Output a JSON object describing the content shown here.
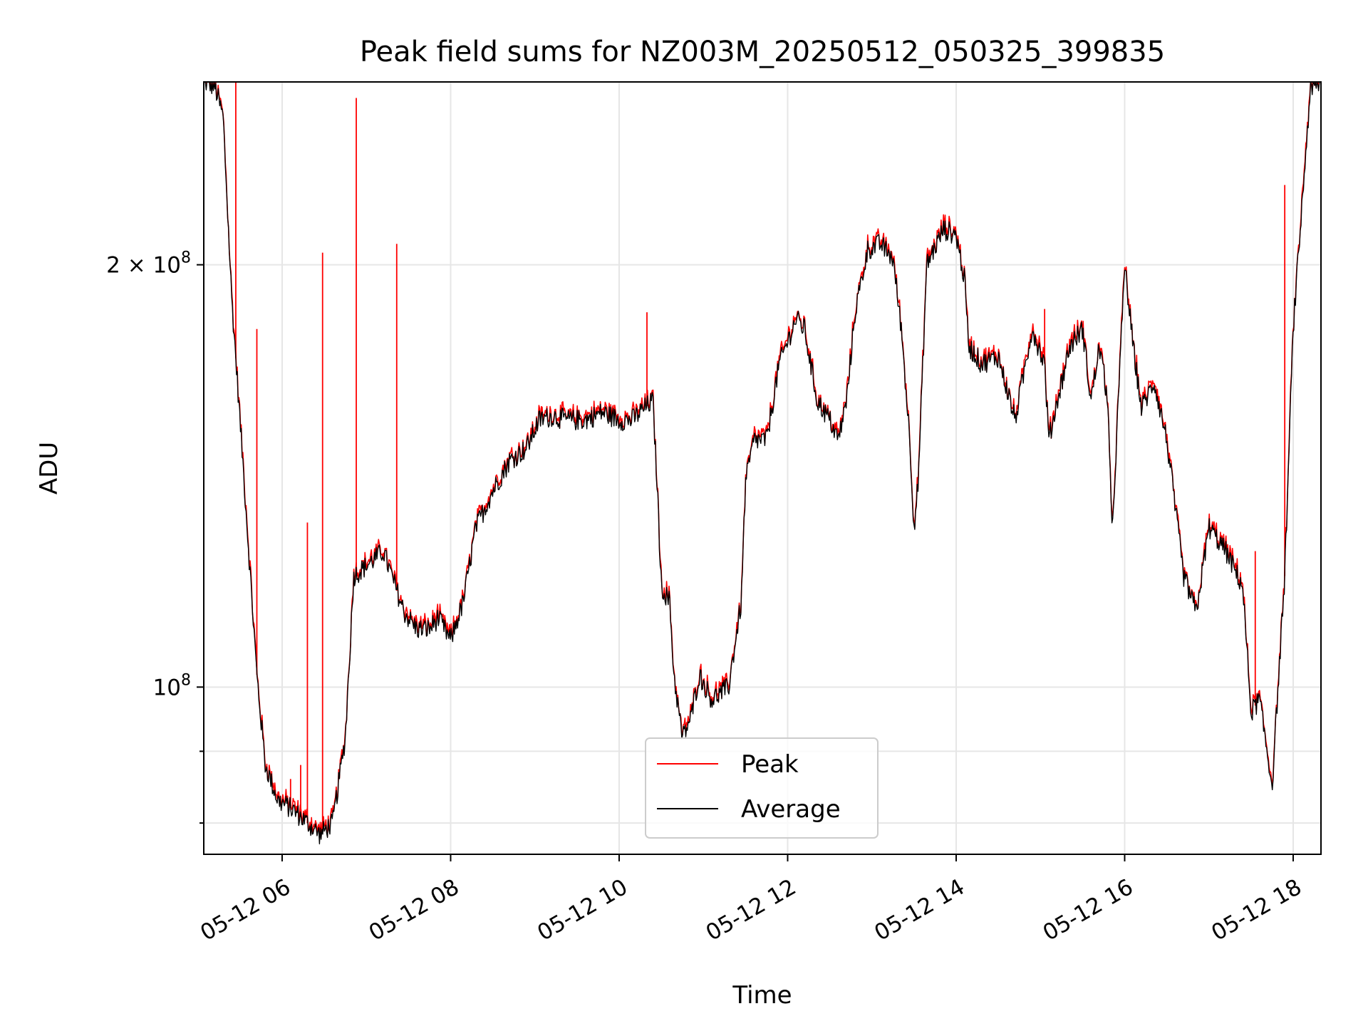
{
  "chart_data": {
    "type": "line",
    "title": "Peak field sums for NZ003M_20250512_050325_399835",
    "xlabel": "Time",
    "ylabel": "ADU",
    "x_unit": "hours",
    "xlim": [
      5.07,
      18.33
    ],
    "ylim": [
      76000000,
      270000000
    ],
    "y_scale": "log",
    "x_ticks": [
      {
        "value": 6,
        "label": "05-12 06"
      },
      {
        "value": 8,
        "label": "05-12 08"
      },
      {
        "value": 10,
        "label": "05-12 10"
      },
      {
        "value": 12,
        "label": "05-12 12"
      },
      {
        "value": 14,
        "label": "05-12 14"
      },
      {
        "value": 16,
        "label": "05-12 16"
      },
      {
        "value": 18,
        "label": "05-12 18"
      }
    ],
    "y_major_ticks": [
      {
        "value": 100000000,
        "base": "10",
        "exp": "8"
      },
      {
        "value": 200000000,
        "base": "2 × 10",
        "exp": "8"
      }
    ],
    "y_minor_ticks": [
      80000000,
      90000000
    ],
    "grid": true,
    "legend_position": "lower center",
    "colors": {
      "peak": "#ff0000",
      "average": "#000000"
    },
    "average_anchors": [
      [
        5.07,
        270000000
      ],
      [
        5.2,
        268000000
      ],
      [
        5.3,
        255000000
      ],
      [
        5.4,
        190000000
      ],
      [
        5.55,
        140000000
      ],
      [
        5.7,
        102000000
      ],
      [
        5.8,
        88000000
      ],
      [
        5.95,
        83000000
      ],
      [
        6.1,
        82000000
      ],
      [
        6.3,
        80000000
      ],
      [
        6.45,
        78500000
      ],
      [
        6.6,
        80000000
      ],
      [
        6.75,
        92000000
      ],
      [
        6.85,
        120000000
      ],
      [
        7.0,
        122000000
      ],
      [
        7.2,
        125000000
      ],
      [
        7.3,
        120000000
      ],
      [
        7.45,
        113000000
      ],
      [
        7.6,
        110000000
      ],
      [
        7.75,
        110000000
      ],
      [
        7.85,
        112000000
      ],
      [
        8.0,
        108000000
      ],
      [
        8.15,
        115000000
      ],
      [
        8.3,
        130000000
      ],
      [
        8.5,
        138000000
      ],
      [
        8.7,
        145000000
      ],
      [
        8.9,
        148000000
      ],
      [
        9.05,
        155000000
      ],
      [
        9.2,
        156000000
      ],
      [
        9.4,
        155000000
      ],
      [
        9.6,
        155000000
      ],
      [
        9.8,
        157000000
      ],
      [
        10.0,
        155000000
      ],
      [
        10.15,
        155000000
      ],
      [
        10.3,
        158000000
      ],
      [
        10.4,
        160000000
      ],
      [
        10.45,
        140000000
      ],
      [
        10.5,
        118000000
      ],
      [
        10.6,
        115000000
      ],
      [
        10.65,
        102000000
      ],
      [
        10.75,
        92000000
      ],
      [
        10.85,
        95000000
      ],
      [
        10.95,
        102000000
      ],
      [
        11.1,
        98000000
      ],
      [
        11.3,
        100000000
      ],
      [
        11.45,
        115000000
      ],
      [
        11.5,
        140000000
      ],
      [
        11.6,
        150000000
      ],
      [
        11.75,
        150000000
      ],
      [
        11.9,
        170000000
      ],
      [
        12.1,
        183000000
      ],
      [
        12.2,
        180000000
      ],
      [
        12.35,
        160000000
      ],
      [
        12.5,
        155000000
      ],
      [
        12.6,
        150000000
      ],
      [
        12.7,
        160000000
      ],
      [
        12.8,
        185000000
      ],
      [
        12.95,
        205000000
      ],
      [
        13.1,
        207000000
      ],
      [
        13.25,
        202000000
      ],
      [
        13.35,
        180000000
      ],
      [
        13.45,
        150000000
      ],
      [
        13.5,
        130000000
      ],
      [
        13.55,
        140000000
      ],
      [
        13.65,
        200000000
      ],
      [
        13.85,
        212000000
      ],
      [
        14.0,
        210000000
      ],
      [
        14.1,
        195000000
      ],
      [
        14.15,
        175000000
      ],
      [
        14.3,
        170000000
      ],
      [
        14.5,
        172000000
      ],
      [
        14.7,
        155000000
      ],
      [
        14.9,
        180000000
      ],
      [
        15.05,
        170000000
      ],
      [
        15.1,
        150000000
      ],
      [
        15.2,
        160000000
      ],
      [
        15.35,
        175000000
      ],
      [
        15.5,
        180000000
      ],
      [
        15.6,
        160000000
      ],
      [
        15.7,
        175000000
      ],
      [
        15.8,
        160000000
      ],
      [
        15.85,
        128000000
      ],
      [
        16.0,
        200000000
      ],
      [
        16.1,
        175000000
      ],
      [
        16.2,
        158000000
      ],
      [
        16.35,
        165000000
      ],
      [
        16.5,
        150000000
      ],
      [
        16.7,
        120000000
      ],
      [
        16.85,
        113000000
      ],
      [
        17.0,
        130000000
      ],
      [
        17.2,
        125000000
      ],
      [
        17.4,
        118000000
      ],
      [
        17.5,
        96000000
      ],
      [
        17.6,
        98000000
      ],
      [
        17.75,
        85000000
      ],
      [
        17.9,
        120000000
      ],
      [
        18.0,
        180000000
      ],
      [
        18.2,
        265000000
      ],
      [
        18.33,
        270000000
      ]
    ],
    "peak_spikes": [
      {
        "x": 5.45,
        "y": 270000000
      },
      {
        "x": 5.7,
        "y": 180000000
      },
      {
        "x": 6.1,
        "y": 86000000
      },
      {
        "x": 6.22,
        "y": 88000000
      },
      {
        "x": 6.3,
        "y": 131000000
      },
      {
        "x": 6.48,
        "y": 204000000
      },
      {
        "x": 6.88,
        "y": 263000000
      },
      {
        "x": 7.36,
        "y": 207000000
      },
      {
        "x": 10.33,
        "y": 185000000
      },
      {
        "x": 15.05,
        "y": 186000000
      },
      {
        "x": 17.55,
        "y": 125000000
      },
      {
        "x": 17.9,
        "y": 228000000
      }
    ],
    "series": [
      {
        "name": "Peak"
      },
      {
        "name": "Average"
      }
    ]
  }
}
